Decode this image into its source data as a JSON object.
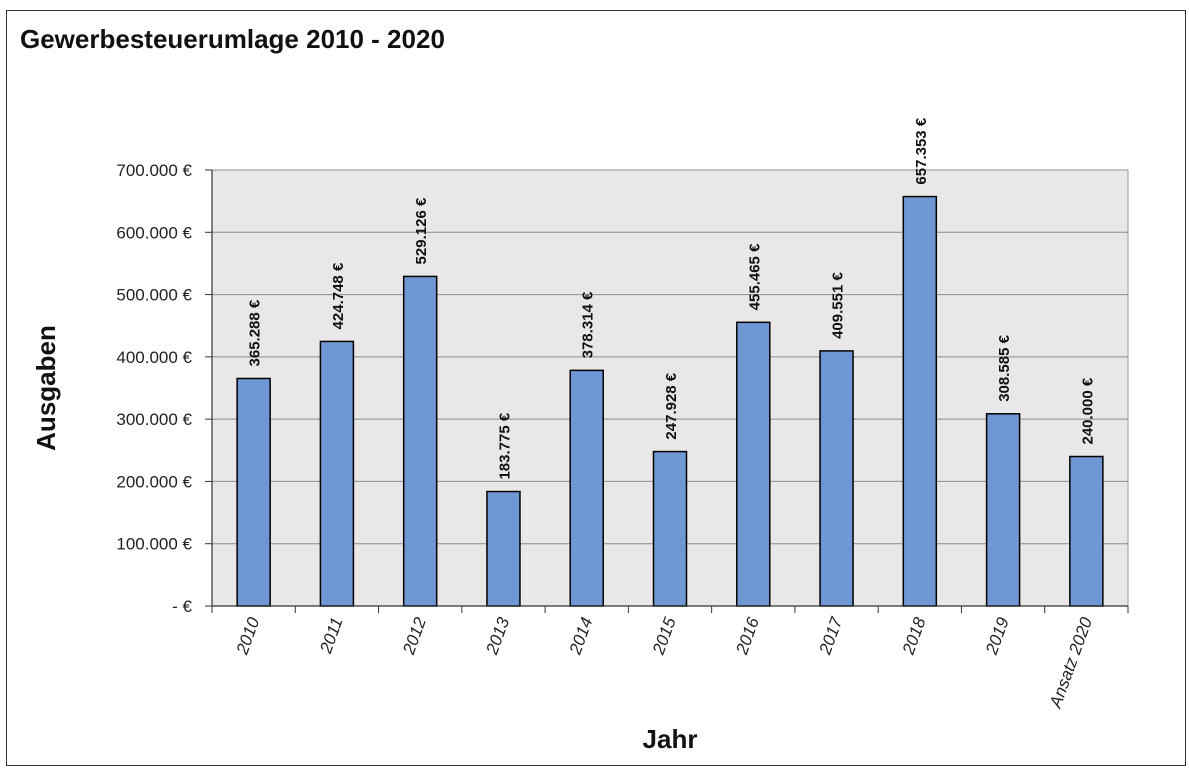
{
  "chart_data": {
    "type": "bar",
    "title": "Gewerbesteuerumlage 2010 - 2020",
    "xlabel": "Jahr",
    "ylabel": "Ausgaben",
    "categories": [
      "2010",
      "2011",
      "2012",
      "2013",
      "2014",
      "2015",
      "2016",
      "2017",
      "2018",
      "2019",
      "Ansatz 2020"
    ],
    "values": [
      365288,
      424748,
      529126,
      183775,
      378314,
      247928,
      455465,
      409551,
      657353,
      308585,
      240000
    ],
    "data_labels": [
      "365.288 €",
      "424.748 €",
      "529.126 €",
      "183.775 €",
      "378.314 €",
      "247.928 €",
      "455.465 €",
      "409.551 €",
      "657.353 €",
      "308.585 €",
      "240.000 €"
    ],
    "ylim": [
      0,
      700000
    ],
    "yticks": [
      0,
      100000,
      200000,
      300000,
      400000,
      500000,
      600000,
      700000
    ],
    "ytick_labels": [
      "-  €",
      "100.000 €",
      "200.000 €",
      "300.000 €",
      "400.000 €",
      "500.000 €",
      "600.000 €",
      "700.000 €"
    ],
    "grid": true,
    "legend": "none",
    "colors": {
      "bar_fill": "#6f97d3",
      "bar_stroke": "#000000",
      "plot_background": "#e9e7e7",
      "gridline": "#8c8c8c"
    }
  }
}
